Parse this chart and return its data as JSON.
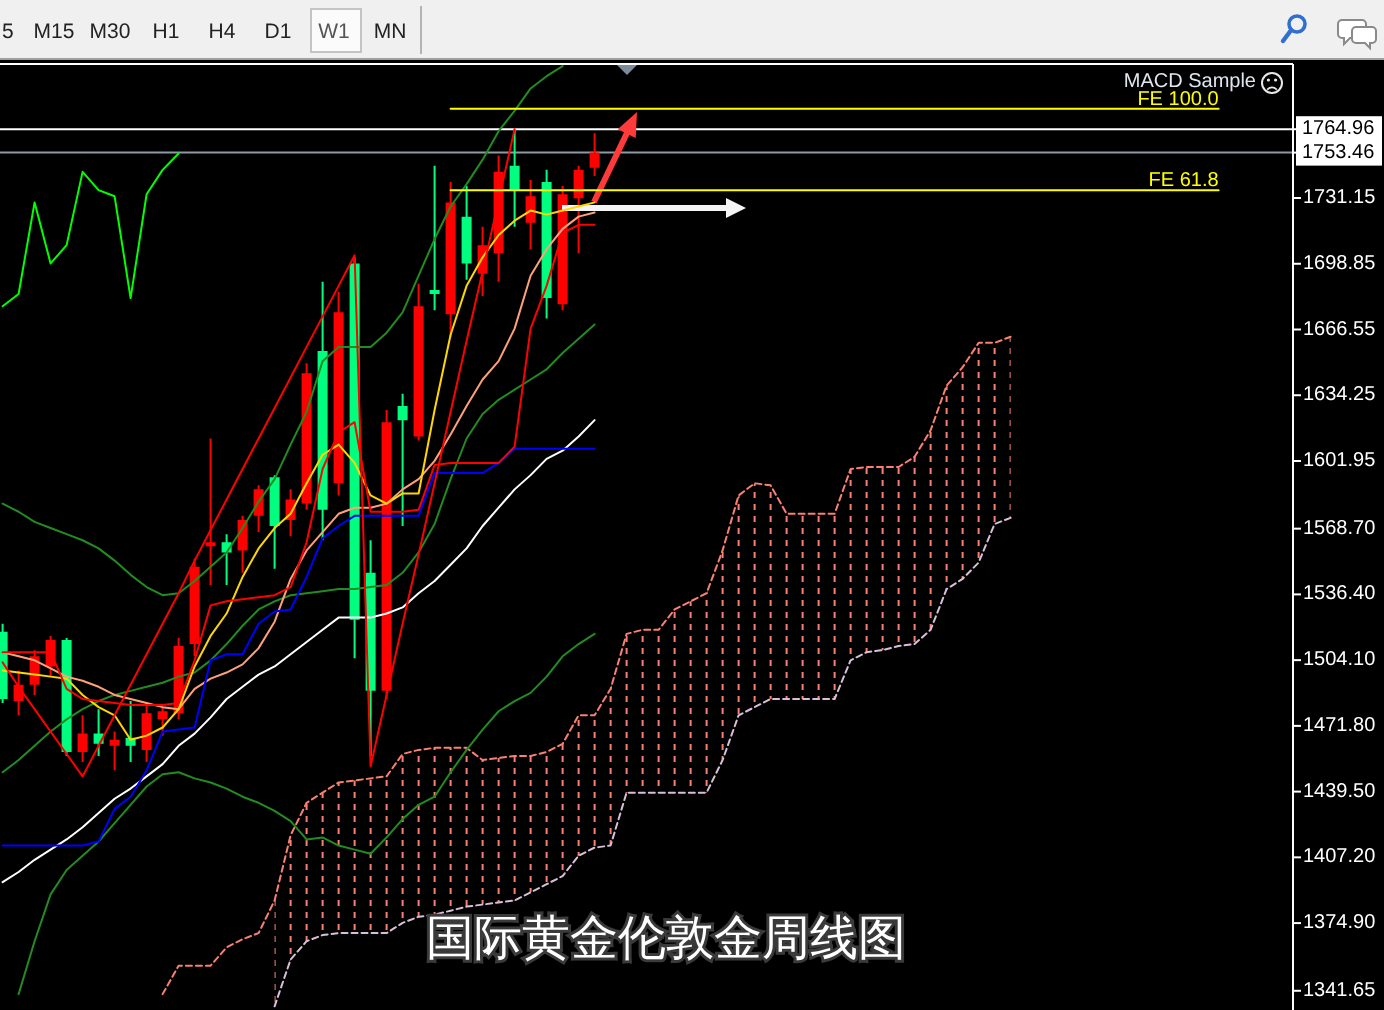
{
  "chart_data": {
    "type": "candlestick",
    "title": "国际黄金伦敦金周线图",
    "annotations": [
      "5",
      "M15",
      "M30",
      "H1",
      "H4",
      "D1",
      "W1",
      "MN",
      "MACD Sample"
    ],
    "categories": [
      null,
      null,
      null,
      null,
      null,
      null,
      null,
      null,
      null,
      null,
      null,
      null,
      null,
      null,
      null,
      null,
      null,
      null,
      null,
      null,
      null,
      null,
      null,
      null,
      null,
      null,
      null,
      null,
      null,
      null,
      null,
      null,
      null,
      null,
      null,
      null,
      null,
      null,
      null,
      null,
      null,
      null,
      null,
      null,
      null,
      null,
      null,
      null,
      null,
      null,
      null,
      null,
      null,
      null,
      null,
      null,
      null,
      null,
      null,
      null,
      null,
      null,
      null,
      null,
      null,
      null,
      null,
      null,
      null,
      null,
      null,
      null,
      null,
      null,
      null,
      null,
      null
    ],
    "ohlc": [
      [
        1518,
        1522,
        1483,
        1485
      ],
      [
        1484,
        1499,
        1477,
        1492
      ],
      [
        1492,
        1509,
        1487,
        1506
      ],
      [
        1501,
        1516,
        1496,
        1514
      ],
      [
        1514,
        1515,
        1457,
        1459
      ],
      [
        1459,
        1477,
        1454,
        1468
      ],
      [
        1468,
        1480,
        1457,
        1463
      ],
      [
        1462,
        1469,
        1450,
        1465
      ],
      [
        1466,
        1484,
        1454,
        1462
      ],
      [
        1460,
        1483,
        1454,
        1478
      ],
      [
        1475,
        1481,
        1467,
        1479
      ],
      [
        1478,
        1515,
        1475,
        1511
      ],
      [
        1512,
        1554,
        1506,
        1550
      ],
      [
        1560,
        1613,
        1541,
        1562
      ],
      [
        1562,
        1566,
        1541,
        1557
      ],
      [
        1558,
        1575,
        1547,
        1573
      ],
      [
        1575,
        1590,
        1567,
        1588
      ],
      [
        1594,
        1595,
        1549,
        1570
      ],
      [
        1573,
        1588,
        1565,
        1583
      ],
      [
        1581,
        1650,
        1578,
        1645
      ],
      [
        1656,
        1690,
        1563,
        1578
      ],
      [
        1591,
        1685,
        1585,
        1675
      ],
      [
        1699,
        1702,
        1505,
        1524
      ],
      [
        1547,
        1563,
        1457,
        1489
      ],
      [
        1489,
        1627,
        1485,
        1621
      ],
      [
        1629,
        1635,
        1570,
        1622
      ],
      [
        1614,
        1689,
        1612,
        1678
      ],
      [
        1686,
        1747,
        1676,
        1684
      ],
      [
        1674,
        1739,
        1663,
        1729
      ],
      [
        1722,
        1737,
        1691,
        1699
      ],
      [
        1694,
        1717,
        1683,
        1708
      ],
      [
        1704,
        1752,
        1690,
        1744
      ],
      [
        1747,
        1764.96,
        1717,
        1735
      ],
      [
        1719,
        1740,
        1706,
        1732
      ],
      [
        1739,
        1745,
        1672,
        1682
      ],
      [
        1679,
        1737,
        1676,
        1733
      ],
      [
        1731,
        1747,
        1704,
        1745
      ],
      [
        1746,
        1763,
        1742,
        1753.46
      ],
      null,
      null,
      null,
      null,
      null,
      null,
      null,
      null,
      null,
      null,
      null,
      null,
      null,
      null,
      null,
      null,
      null,
      null,
      null,
      null,
      null,
      null,
      null,
      null,
      null,
      null,
      null,
      null,
      null,
      null,
      null,
      null,
      null,
      null,
      null,
      null,
      null,
      null,
      null
    ],
    "colors": [
      "#00ff7f",
      "#ff0000",
      "#ff0000",
      "#ff0000",
      "#00ff7f",
      "#ff0000",
      "#00ff7f",
      "#ff0000",
      "#00ff7f",
      "#ff0000",
      "#ff0000",
      "#ff0000",
      "#ff0000",
      "#ff0000",
      "#00ff7f",
      "#ff0000",
      "#ff0000",
      "#00ff7f",
      "#ff0000",
      "#ff0000",
      "#00ff7f",
      "#ff0000",
      "#00ff7f",
      "#00ff7f",
      "#ff0000",
      "#00ff7f",
      "#ff0000",
      "#00ff7f",
      "#ff0000",
      "#00ff7f",
      "#ff0000",
      "#ff0000",
      "#00ff7f",
      "#ff0000",
      "#00ff7f",
      "#ff0000",
      "#ff0000",
      "#ff0000",
      null,
      null,
      null,
      null,
      null,
      null,
      null,
      null,
      null,
      null,
      null,
      null,
      null,
      null,
      null,
      null,
      null,
      null,
      null,
      null,
      null,
      null,
      null,
      null,
      null,
      null,
      null,
      null,
      null,
      null,
      null,
      null,
      null,
      null,
      null,
      null,
      null,
      null,
      null
    ],
    "series": [
      {
        "type": "line",
        "color": "#fa8072",
        "line_style": "dashed",
        "values": [
          null,
          null,
          null,
          null,
          null,
          null,
          null,
          null,
          null,
          null,
          1340,
          1354,
          1354,
          1354,
          1363,
          1367,
          1370,
          1386,
          1418,
          1434,
          1439,
          1444,
          1445,
          1446,
          1447,
          1458,
          1460,
          1461,
          1461,
          1461,
          1455,
          1456,
          1457,
          1457,
          1459,
          1463,
          1477,
          1477,
          1490,
          1517,
          1519,
          1519,
          1529,
          1533,
          1537,
          1558,
          1585,
          1591,
          1590,
          1576,
          1576,
          1576,
          1576,
          1598,
          1599,
          1599,
          1599,
          1604,
          1617,
          1639,
          1648,
          1660,
          1660,
          1663,
          null,
          null,
          null,
          null,
          null,
          null,
          null,
          null,
          null,
          null,
          null,
          null,
          null
        ],
        "upper": [
          null,
          null,
          null,
          null,
          null,
          null,
          null,
          null,
          null,
          null,
          null,
          null,
          null,
          null,
          null,
          null,
          null,
          1386,
          1418,
          1434,
          1439,
          1444,
          1445,
          1446,
          1447,
          1458,
          1460,
          1461,
          1461,
          1461,
          1455,
          1456,
          1457,
          1457,
          1459,
          1463,
          1477,
          1477,
          1490,
          1517,
          1519,
          1519,
          1529,
          1533,
          1537,
          1558,
          1585,
          1591,
          1590,
          1576,
          1576,
          1576,
          1576,
          1598,
          1599,
          1599,
          1599,
          1604,
          1617,
          1639,
          1648,
          1660,
          1660,
          1663,
          null,
          null,
          null,
          null,
          null,
          null,
          null,
          null,
          null,
          null,
          null,
          null,
          null
        ],
        "lower": [
          null,
          null,
          null,
          null,
          null,
          null,
          null,
          null,
          null,
          null,
          null,
          null,
          null,
          null,
          null,
          null,
          null,
          1334,
          1357,
          1366,
          1369,
          1370,
          1370,
          1370,
          1370,
          1375,
          1378,
          1379,
          1381,
          1383,
          1384,
          1385,
          1386,
          1390,
          1394,
          1398,
          1408,
          1412,
          1413,
          1439,
          1439,
          1439,
          1439,
          1439,
          1439,
          1455,
          1477,
          1481,
          1485,
          1485,
          1485,
          1485,
          1485,
          1504,
          1508,
          1509,
          1511,
          1512,
          1519,
          1539,
          1544,
          1552,
          1571,
          1574,
          null,
          null,
          null,
          null,
          null,
          null,
          null,
          null,
          null,
          null,
          null,
          null,
          null
        ]
      },
      {
        "type": "line",
        "color": "#d8bfd8",
        "line_style": "dashed",
        "values": [
          null,
          null,
          null,
          null,
          null,
          null,
          null,
          null,
          null,
          null,
          null,
          null,
          null,
          null,
          null,
          null,
          null,
          1334,
          1357,
          1366,
          1369,
          1370,
          1370,
          1370,
          1370,
          1375,
          1378,
          1379,
          1381,
          1383,
          1384,
          1385,
          1386,
          1390,
          1394,
          1398,
          1408,
          1412,
          1413,
          1439,
          1439,
          1439,
          1439,
          1439,
          1439,
          1455,
          1477,
          1481,
          1485,
          1485,
          1485,
          1485,
          1485,
          1504,
          1508,
          1509,
          1511,
          1512,
          1519,
          1539,
          1544,
          1552,
          1571,
          1574,
          null,
          null,
          null,
          null,
          null,
          null,
          null,
          null,
          null,
          null,
          null,
          null,
          null
        ]
      },
      {
        "type": "line",
        "color": "#228b22",
        "values": [
          1581,
          1577,
          1572,
          1569,
          1566,
          1563,
          1559,
          1553,
          1546,
          1540,
          1536,
          1537,
          1543,
          1550,
          1557,
          1569,
          1582,
          1593,
          1610,
          1626,
          1651,
          1658,
          1658,
          1658,
          1665,
          1675,
          1693,
          1711,
          1727,
          1738,
          1750,
          1764,
          1774,
          1785,
          1791,
          1796,
          null,
          null,
          null,
          null,
          null,
          null,
          null,
          null,
          null,
          null,
          null,
          null,
          null,
          null,
          null,
          null,
          null,
          null,
          null,
          null,
          null,
          null,
          null,
          null,
          null,
          null,
          null,
          null,
          null,
          null,
          null,
          null,
          null,
          null,
          null,
          null,
          null,
          null,
          null,
          null,
          null
        ]
      },
      {
        "type": "line",
        "color": "#228b22",
        "values": [
          1449,
          1455,
          1462,
          1469,
          1475,
          1480,
          1484,
          1487,
          1489,
          1491,
          1493,
          1496,
          1498,
          1504,
          1512,
          1521,
          1529,
          1533,
          1536,
          1537,
          1538,
          1539,
          1539,
          1540,
          1541,
          1547,
          1557,
          1571,
          1593,
          1613,
          1625,
          1632,
          1637,
          1642,
          1647,
          1655,
          1662,
          1669,
          null,
          null,
          null,
          null,
          null,
          null,
          null,
          null,
          null,
          null,
          null,
          null,
          null,
          null,
          null,
          null,
          null,
          null,
          null,
          null,
          null,
          null,
          null,
          null,
          null,
          null,
          null,
          null,
          null,
          null,
          null,
          null,
          null,
          null,
          null,
          null,
          null,
          null,
          null
        ]
      },
      {
        "type": "line",
        "color": "#228b22",
        "values": [
          null,
          1340,
          1366,
          1389,
          1401,
          1408,
          1415,
          1424,
          1433,
          1442,
          1448,
          1449,
          1446,
          1444,
          1441,
          1437,
          1434,
          1430,
          1425,
          1416,
          1417,
          1413,
          1411,
          1409,
          1417,
          1426,
          1433,
          1437,
          1449,
          1460,
          1470,
          1479,
          1484,
          1488,
          1496,
          1506,
          1512,
          1517,
          null,
          null,
          null,
          null,
          null,
          null,
          null,
          null,
          null,
          null,
          null,
          null,
          null,
          null,
          null,
          null,
          null,
          null,
          null,
          null,
          null,
          null,
          null,
          null,
          null,
          null,
          null,
          null,
          null,
          null,
          null,
          null,
          null,
          null,
          null,
          null,
          null,
          null,
          null
        ]
      },
      {
        "type": "line",
        "color": "#ffffff",
        "values": [
          1395,
          1400,
          1406,
          1411,
          1416,
          1422,
          1429,
          1436,
          1441,
          1447,
          1453,
          1462,
          1468,
          1476,
          1485,
          1491,
          1497,
          1501,
          1507,
          1513,
          1519,
          1525,
          1525,
          1525,
          1527,
          1530,
          1537,
          1543,
          1551,
          1559,
          1570,
          1579,
          1588,
          1595,
          1603,
          1607,
          1614,
          1622,
          null,
          null,
          null,
          null,
          null,
          null,
          null,
          null,
          null,
          null,
          null,
          null,
          null,
          null,
          null,
          null,
          null,
          null,
          null,
          null,
          null,
          null,
          null,
          null,
          null,
          null,
          null,
          null,
          null,
          null,
          null,
          null,
          null,
          null,
          null,
          null,
          null,
          null,
          null
        ]
      },
      {
        "type": "line",
        "color": "#ffa07a",
        "values": [
          1508,
          1506,
          1504,
          1500,
          1496,
          1494,
          1491,
          1487,
          1485,
          1483,
          1481,
          1480,
          1490,
          1495,
          1498,
          1502,
          1510,
          1523,
          1544,
          1558,
          1567,
          1576,
          1579,
          1579,
          1581,
          1588,
          1593,
          1602,
          1615,
          1629,
          1642,
          1651,
          1667,
          1693,
          1706,
          1716,
          1722,
          1724,
          null,
          null,
          null,
          null,
          null,
          null,
          null,
          null,
          null,
          null,
          null,
          null,
          null,
          null,
          null,
          null,
          null,
          null,
          null,
          null,
          null,
          null,
          null,
          null,
          null,
          null,
          null,
          null,
          null,
          null,
          null,
          null,
          null,
          null,
          null,
          null,
          null,
          null,
          null
        ]
      },
      {
        "type": "line",
        "color": "#ffd700",
        "values": [
          1499,
          1498,
          1497,
          1496,
          1495,
          1487,
          1481,
          1477,
          1465,
          1467,
          1471,
          1480,
          1501,
          1516,
          1527,
          1545,
          1559,
          1569,
          1576,
          1591,
          1605,
          1610,
          1601,
          1585,
          1581,
          1586,
          1586,
          1627,
          1664,
          1688,
          1702,
          1713,
          1720,
          1725,
          1723,
          1725,
          1727,
          1729,
          null,
          null,
          null,
          null,
          null,
          null,
          null,
          null,
          null,
          null,
          null,
          null,
          null,
          null,
          null,
          null,
          null,
          null,
          null,
          null,
          null,
          null,
          null,
          null,
          null,
          null,
          null,
          null,
          null,
          null,
          null,
          null,
          null,
          null,
          null,
          null,
          null,
          null,
          null
        ]
      },
      {
        "type": "line",
        "color": "#0000ff",
        "values": [
          1413,
          1413,
          1413,
          1413,
          1413,
          1413,
          1415,
          1431,
          1437,
          1450,
          1469,
          1470,
          1471,
          1504,
          1507,
          1507,
          1522,
          1528,
          1529,
          1545,
          1564,
          1570,
          1575,
          1575,
          1575,
          1575,
          1575,
          1596,
          1596,
          1596,
          1596,
          1601,
          1608,
          1608,
          1608,
          1608,
          1608,
          1608,
          null,
          null,
          null,
          null,
          null,
          null,
          null,
          null,
          null,
          null,
          null,
          null,
          null,
          null,
          null,
          null,
          null,
          null,
          null,
          null,
          null,
          null,
          null,
          null,
          null,
          null,
          null,
          null,
          null,
          null,
          null,
          null,
          null,
          null,
          null,
          null,
          null,
          null,
          null
        ]
      },
      {
        "type": "line",
        "color": "#ff0000",
        "values": [
          1508,
          1508,
          1508,
          1508,
          1490,
          1485,
          1484,
          1483,
          1482,
          1482,
          1482,
          1483,
          1504,
          1531,
          1533,
          1534,
          1535,
          1536,
          1540,
          1562,
          1598,
          1616,
          1621,
          1577,
          1577,
          1577,
          1578,
          1600,
          1601,
          1601,
          1601,
          1601,
          1609,
          1667,
          1688,
          1714,
          1718,
          1718,
          null,
          null,
          null,
          null,
          null,
          null,
          null,
          null,
          null,
          null,
          null,
          null,
          null,
          null,
          null,
          null,
          null,
          null,
          null,
          null,
          null,
          null,
          null,
          null,
          null,
          null,
          null,
          null,
          null,
          null,
          null,
          null,
          null,
          null,
          null,
          null,
          null,
          null,
          null
        ]
      },
      {
        "type": "line",
        "color": "#00ff00",
        "values": [
          1678,
          1684,
          1729,
          1699,
          1708,
          1744,
          1735,
          1732,
          1682,
          1733,
          1745,
          1753,
          null,
          null,
          null,
          null,
          null,
          null,
          null,
          null,
          null,
          null,
          null,
          null,
          null,
          null,
          null,
          null,
          null,
          null,
          null,
          null,
          null,
          null,
          null,
          null,
          null,
          null,
          null,
          null,
          null,
          null,
          null,
          null,
          null,
          null,
          null,
          null,
          null,
          null,
          null,
          null,
          null,
          null,
          null,
          null,
          null,
          null,
          null,
          null,
          null,
          null,
          null,
          null,
          null,
          null,
          null,
          null,
          null,
          null,
          null,
          null,
          null,
          null,
          null,
          null,
          null
        ]
      },
      {
        "type": "line",
        "color": "#ff0000",
        "values": [
          1503,
          1491,
          1480,
          1469,
          1458,
          1447,
          1462,
          1477,
          1492,
          1507,
          1522,
          1537,
          1553,
          1568,
          1583,
          1598,
          1613,
          1628,
          1643,
          1658,
          1673,
          1688,
          1703,
          1452,
          1487,
          1522,
          1556,
          1591,
          1626,
          1661,
          1695,
          1730,
          1765,
          null,
          null,
          null,
          null,
          null,
          null,
          null,
          null,
          null,
          null,
          null,
          null,
          null,
          null,
          null,
          null,
          null,
          null,
          null,
          null,
          null,
          null,
          null,
          null,
          null,
          null,
          null,
          null,
          null,
          null,
          null,
          null,
          null,
          null,
          null,
          null,
          null,
          null,
          null,
          null,
          null,
          null,
          null,
          null
        ]
      },
      {
        "type": "line",
        "name": "FE 100.0",
        "color": "#ffff00",
        "values": [
          null,
          null,
          null,
          null,
          null,
          null,
          null,
          null,
          null,
          null,
          null,
          null,
          null,
          null,
          null,
          null,
          null,
          null,
          null,
          null,
          null,
          null,
          null,
          null,
          null,
          null,
          null,
          null,
          1775,
          1775,
          1775,
          1775,
          1775,
          1775,
          1775,
          1775,
          1775,
          1775,
          1775,
          1775,
          1775,
          1775,
          1775,
          1775,
          1775,
          1775,
          1775,
          1775,
          1775,
          1775,
          1775,
          1775,
          1775,
          1775,
          1775,
          1775,
          1775,
          1775,
          1775,
          1775,
          1775,
          1775,
          1775,
          1775,
          1775,
          1775,
          1775,
          1775,
          1775,
          1775,
          1775,
          1775,
          1775,
          1775,
          1775,
          1775,
          1775
        ]
      },
      {
        "type": "line",
        "name": "FE 61.8",
        "color": "#ffff00",
        "values": [
          null,
          null,
          null,
          null,
          null,
          null,
          null,
          null,
          null,
          null,
          null,
          null,
          null,
          null,
          null,
          null,
          null,
          null,
          null,
          null,
          null,
          null,
          null,
          null,
          null,
          null,
          null,
          null,
          1735,
          1735,
          1735,
          1735,
          1735,
          1735,
          1735,
          1735,
          1735,
          1735,
          1735,
          1735,
          1735,
          1735,
          1735,
          1735,
          1735,
          1735,
          1735,
          1735,
          1735,
          1735,
          1735,
          1735,
          1735,
          1735,
          1735,
          1735,
          1735,
          1735,
          1735,
          1735,
          1735,
          1735,
          1735,
          1735,
          1735,
          1735,
          1735,
          1735,
          1735,
          1735,
          1735,
          1735,
          1735,
          1735,
          1735,
          1735,
          1735
        ]
      }
    ],
    "ylim": [
      1332.2,
      1797
    ],
    "yticks": [
      1764.96,
      1753.46,
      1731.15,
      1698.85,
      1666.55,
      1634.25,
      1601.95,
      {
        "value": 1568.7,
        "label": "1568.70"
      },
      {
        "value": 1536.4,
        "label": "1536.40"
      },
      {
        "value": 1504.1,
        "label": "1504.10"
      },
      {
        "value": 1471.8,
        "label": "1471.80"
      },
      {
        "value": 1439.5,
        "label": "1439.50"
      },
      {
        "value": 1407.2,
        "label": "1407.20"
      },
      {
        "value": 1374.9,
        "label": "1374.90"
      },
      1341.65
    ],
    "tick_labels": "y",
    "ref_lines": [
      {
        "axis": "y",
        "value": 1764.96,
        "color": "#ffffff"
      },
      {
        "axis": "y",
        "value": 1753.46,
        "color": "#8c9aa8"
      }
    ]
  }
}
